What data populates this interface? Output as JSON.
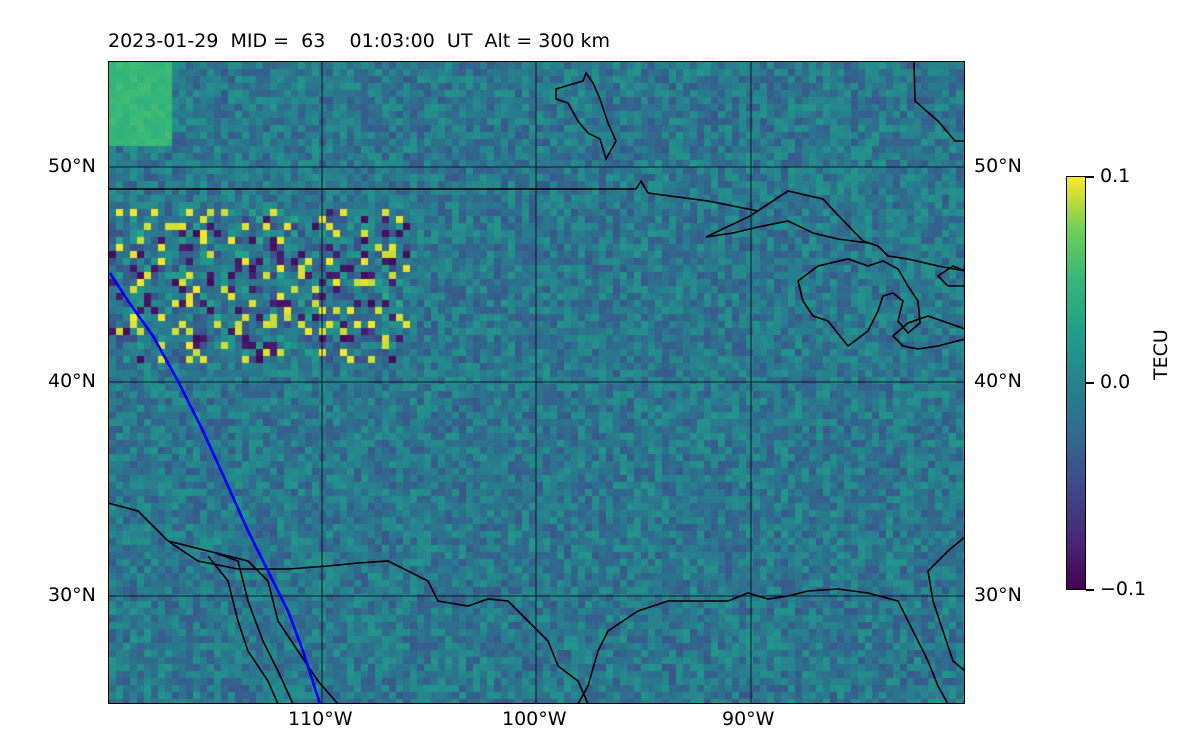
{
  "title": "2023-01-29  MID =  63    01:03:00  UT  Alt = 300 km",
  "latitudes": [
    "50°N",
    "40°N",
    "30°N"
  ],
  "longitudes": [
    "110°W",
    "100°W",
    "90°W"
  ],
  "colorbar": {
    "label": "TECU",
    "max": "0.1",
    "mid": "0.0",
    "min": "−0.1",
    "colormap": "viridis"
  },
  "track_color": "#0000ff",
  "coastline_color": "#000000"
}
